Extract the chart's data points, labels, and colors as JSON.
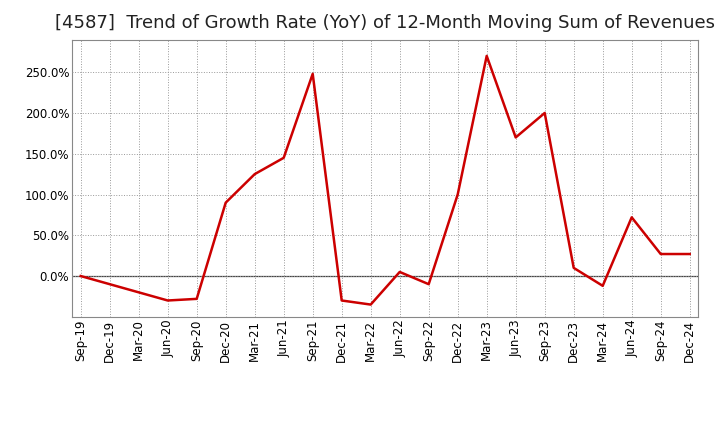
{
  "title": "[4587]  Trend of Growth Rate (YoY) of 12-Month Moving Sum of Revenues",
  "x_labels": [
    "Sep-19",
    "Dec-19",
    "Mar-20",
    "Jun-20",
    "Sep-20",
    "Dec-20",
    "Mar-21",
    "Jun-21",
    "Sep-21",
    "Dec-21",
    "Mar-22",
    "Jun-22",
    "Sep-22",
    "Dec-22",
    "Mar-23",
    "Jun-23",
    "Sep-23",
    "Dec-23",
    "Mar-24",
    "Jun-24",
    "Sep-24",
    "Dec-24"
  ],
  "y_values": [
    0.0,
    -10.0,
    -20.0,
    -30.0,
    -28.0,
    90.0,
    125.0,
    145.0,
    248.0,
    -30.0,
    -35.0,
    5.0,
    -10.0,
    100.0,
    270.0,
    170.0,
    200.0,
    10.0,
    -12.0,
    72.0,
    27.0,
    27.0
  ],
  "line_color": "#cc0000",
  "line_width": 1.8,
  "background_color": "#ffffff",
  "plot_bg_color": "#ffffff",
  "grid_color": "#999999",
  "zero_line_color": "#444444",
  "ylim": [
    -50,
    290
  ],
  "yticks": [
    0,
    50,
    100,
    150,
    200,
    250
  ],
  "ytick_labels": [
    "0.0%",
    "50.0%",
    "100.0%",
    "150.0%",
    "200.0%",
    "250.0%"
  ],
  "title_fontsize": 13,
  "tick_fontsize": 8.5,
  "title_color": "#222222"
}
